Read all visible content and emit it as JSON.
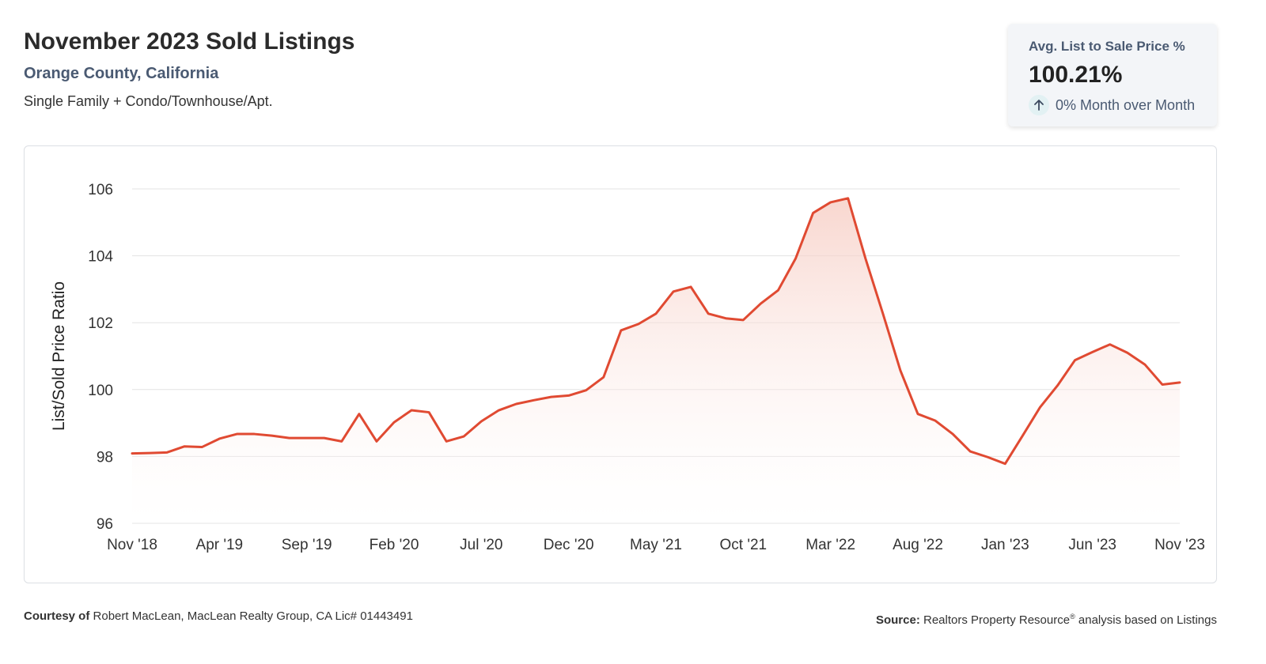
{
  "header": {
    "title": "November 2023 Sold Listings",
    "subtitle": "Orange County, California",
    "property_types": "Single Family + Condo/Townhouse/Apt."
  },
  "stat_card": {
    "label": "Avg. List to Sale Price %",
    "value": "100.21%",
    "change": "0% Month over Month",
    "change_icon": "arrow-up-icon"
  },
  "footer": {
    "courtesy_label": "Courtesy of",
    "courtesy_text": "Robert MacLean, MacLean Realty Group, CA Lic# 01443491",
    "source_label": "Source:",
    "source_text_1": "Realtors Property Resource",
    "source_sup": "®",
    "source_text_2": " analysis based on Listings"
  },
  "colors": {
    "line": "#e04a32",
    "fill_top": "#f6c9bf",
    "grid": "#e3e3e3"
  },
  "chart_data": {
    "type": "area",
    "title": "",
    "xlabel": "",
    "ylabel": "List/Sold Price Ratio",
    "ylim": [
      96,
      106
    ],
    "yticks": [
      96,
      98,
      100,
      102,
      104,
      106
    ],
    "grid": true,
    "x_tick_labels": [
      "Nov '18",
      "Apr '19",
      "Sep '19",
      "Feb '20",
      "Jul '20",
      "Dec '20",
      "May '21",
      "Oct '21",
      "Mar '22",
      "Aug '22",
      "Jan '23",
      "Jun '23",
      "Nov '23"
    ],
    "x": [
      "Nov '18",
      "Dec '18",
      "Jan '19",
      "Feb '19",
      "Mar '19",
      "Apr '19",
      "May '19",
      "Jun '19",
      "Jul '19",
      "Aug '19",
      "Sep '19",
      "Oct '19",
      "Nov '19",
      "Dec '19",
      "Jan '20",
      "Feb '20",
      "Mar '20",
      "Apr '20",
      "May '20",
      "Jun '20",
      "Jul '20",
      "Aug '20",
      "Sep '20",
      "Oct '20",
      "Nov '20",
      "Dec '20",
      "Jan '21",
      "Feb '21",
      "Mar '21",
      "Apr '21",
      "May '21",
      "Jun '21",
      "Jul '21",
      "Aug '21",
      "Sep '21",
      "Oct '21",
      "Nov '21",
      "Dec '21",
      "Jan '22",
      "Feb '22",
      "Mar '22",
      "Apr '22",
      "May '22",
      "Jun '22",
      "Jul '22",
      "Aug '22",
      "Sep '22",
      "Oct '22",
      "Nov '22",
      "Dec '22",
      "Jan '23",
      "Feb '23",
      "Mar '23",
      "Apr '23",
      "May '23",
      "Jun '23",
      "Jul '23",
      "Aug '23",
      "Sep '23",
      "Oct '23",
      "Nov '23"
    ],
    "series": [
      {
        "values": [
          98.09,
          98.1,
          98.12,
          98.3,
          98.28,
          98.53,
          98.67,
          98.67,
          98.62,
          98.55,
          98.55,
          98.55,
          98.45,
          99.27,
          98.45,
          99.02,
          99.38,
          99.32,
          98.45,
          98.6,
          99.05,
          99.38,
          99.57,
          99.68,
          99.78,
          99.82,
          99.98,
          100.37,
          101.77,
          101.96,
          102.27,
          102.93,
          103.07,
          102.27,
          102.13,
          102.08,
          102.57,
          102.97,
          103.92,
          105.28,
          105.6,
          105.72,
          103.92,
          102.27,
          100.57,
          99.27,
          99.07,
          98.67,
          98.15,
          97.98,
          97.78,
          98.62,
          99.47,
          100.12,
          100.88,
          101.12,
          101.35,
          101.1,
          100.75,
          100.15,
          100.21
        ]
      }
    ]
  }
}
